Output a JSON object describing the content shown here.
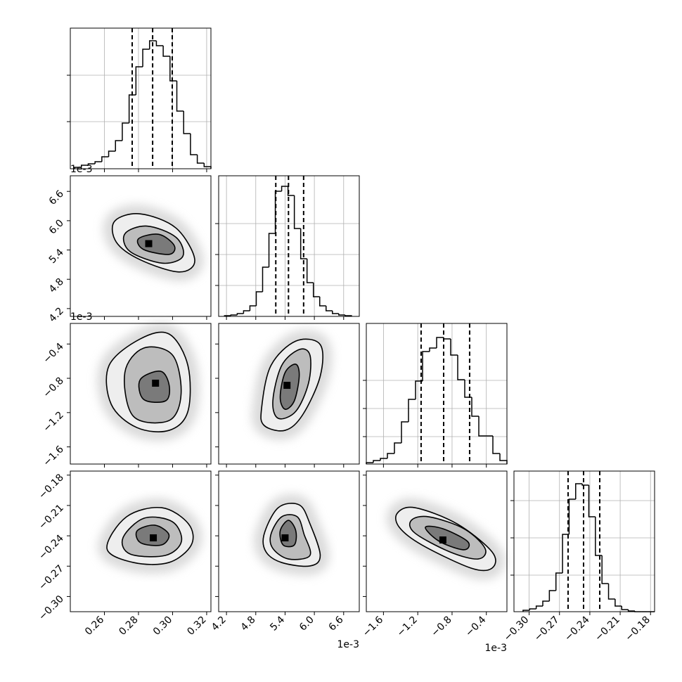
{
  "chart_data": {
    "type": "corner",
    "grid": true,
    "variables": [
      {
        "lim": [
          0.24,
          0.3225
        ],
        "ticks": [
          0.26,
          0.28,
          {
            "value": 0.3,
            "label": "0.30"
          },
          0.32
        ],
        "bins": [
          0.2425,
          0.2465,
          0.2505,
          0.2545,
          0.2585,
          0.2625,
          0.2665,
          0.2705,
          0.2745,
          0.2785,
          0.2825,
          0.2865,
          0.2905,
          0.2945,
          0.2985,
          0.3025,
          0.3065,
          0.3105,
          0.3145,
          0.3185,
          0.3225
        ],
        "counts": [
          2,
          5,
          7,
          10,
          17,
          25,
          40,
          65,
          105,
          145,
          170,
          182,
          175,
          160,
          125,
          82,
          50,
          20,
          8,
          3
        ],
        "hist_ylim": [
          0,
          200
        ],
        "hist_yticks": [
          67,
          133
        ],
        "quantiles": [
          0.2763,
          0.2883,
          0.2998
        ]
      },
      {
        "lim": [
          4.04,
          6.92
        ],
        "offset": "1e-3",
        "ticks": [
          4.2,
          4.8,
          5.4,
          {
            "value": 6,
            "label": "6.0"
          },
          6.6
        ],
        "bins": [
          4.16,
          4.29,
          4.42,
          4.55,
          4.68,
          4.81,
          4.94,
          5.07,
          5.2,
          5.33,
          5.46,
          5.59,
          5.72,
          5.85,
          5.98,
          6.11,
          6.24,
          6.37,
          6.5,
          6.63,
          6.76
        ],
        "counts": [
          1,
          2,
          4,
          8,
          15,
          35,
          70,
          118,
          178,
          185,
          172,
          125,
          82,
          48,
          28,
          15,
          8,
          4,
          2,
          1
        ],
        "hist_ylim": [
          0,
          200
        ],
        "hist_yticks": [
          44,
          88,
          132
        ],
        "quantiles": [
          5.21,
          5.47,
          5.78
        ]
      },
      {
        "lim": [
          -1.8,
          -0.16
        ],
        "offset": "1e-3",
        "ticks": [
          {
            "value": -1.6,
            "label": "−1.6"
          },
          {
            "value": -1.2,
            "label": "−1.2"
          },
          {
            "value": -0.8,
            "label": "−0.8"
          },
          {
            "value": -0.4,
            "label": "−0.4"
          }
        ],
        "bins": [
          -1.8,
          -1.718,
          -1.636,
          -1.554,
          -1.472,
          -1.39,
          -1.308,
          -1.226,
          -1.144,
          -1.062,
          -0.98,
          -0.898,
          -0.816,
          -0.734,
          -0.652,
          -0.57,
          -0.488,
          -0.406,
          -0.324,
          -0.242,
          -0.16
        ],
        "counts": [
          2,
          5,
          8,
          15,
          30,
          60,
          92,
          118,
          160,
          165,
          180,
          178,
          155,
          120,
          95,
          68,
          40,
          40,
          15,
          5
        ],
        "hist_ylim": [
          0,
          200
        ],
        "hist_yticks": [
          39,
          79,
          119
        ],
        "quantiles": [
          -1.161,
          -0.898,
          -0.595
        ]
      },
      {
        "lim": [
          -0.315,
          -0.176
        ],
        "ticks": [
          {
            "value": -0.3,
            "label": "−0.30"
          },
          {
            "value": -0.27,
            "label": "−0.27"
          },
          {
            "value": -0.24,
            "label": "−0.24"
          },
          {
            "value": -0.21,
            "label": "−0.21"
          },
          {
            "value": -0.18,
            "label": "−0.18"
          }
        ],
        "bins": [
          -0.306,
          -0.2995,
          -0.293,
          -0.2865,
          -0.28,
          -0.2735,
          -0.267,
          -0.2605,
          -0.254,
          -0.2475,
          -0.241,
          -0.2345,
          -0.228,
          -0.2215,
          -0.215,
          -0.2085,
          -0.202,
          -0.1955,
          -0.189,
          -0.1825,
          -0.176
        ],
        "counts": [
          2,
          4,
          8,
          15,
          30,
          55,
          110,
          160,
          182,
          180,
          135,
          80,
          40,
          18,
          8,
          3,
          1,
          0,
          0,
          0
        ],
        "hist_ylim": [
          0,
          200
        ],
        "hist_yticks": [
          52,
          105,
          158
        ],
        "quantiles": [
          -0.2615,
          -0.2462,
          -0.2302
        ]
      }
    ],
    "pairs": [
      [
        {
          "contours": [
            [
              [
                0.266,
                5.99
              ],
              [
                0.281,
                6.14
              ],
              [
                0.302,
                5.85
              ],
              [
                0.313,
                5.2
              ],
              [
                0.304,
                4.95
              ],
              [
                0.281,
                5.2
              ],
              [
                0.267,
                5.56
              ]
            ],
            [
              [
                0.272,
                5.73
              ],
              [
                0.285,
                5.89
              ],
              [
                0.302,
                5.66
              ],
              [
                0.306,
                5.27
              ],
              [
                0.294,
                5.13
              ],
              [
                0.275,
                5.37
              ]
            ],
            [
              [
                0.28,
                5.63
              ],
              [
                0.292,
                5.72
              ],
              [
                0.301,
                5.49
              ],
              [
                0.298,
                5.31
              ],
              [
                0.283,
                5.41
              ]
            ]
          ],
          "peak": [
            0.286,
            5.53
          ]
        }
      ],
      [
        {
          "contours": [
            [
              [
                0.2627,
                -0.652
              ],
              [
                0.281,
                -0.341
              ],
              [
                0.298,
                -0.284
              ],
              [
                0.309,
                -0.652
              ],
              [
                0.309,
                -1.185
              ],
              [
                0.298,
                -1.407
              ],
              [
                0.279,
                -1.374
              ],
              [
                0.264,
                -1.103
              ]
            ],
            [
              [
                0.272,
                -0.734
              ],
              [
                0.283,
                -0.448
              ],
              [
                0.3,
                -0.53
              ],
              [
                0.305,
                -0.98
              ],
              [
                0.298,
                -1.292
              ],
              [
                0.277,
                -1.243
              ]
            ],
            [
              [
                0.281,
                -0.816
              ],
              [
                0.293,
                -0.718
              ],
              [
                0.298,
                -0.882
              ],
              [
                0.296,
                -1.062
              ],
              [
                0.283,
                -1.046
              ]
            ]
          ],
          "peak": [
            0.29,
            -0.857
          ]
        },
        {
          "contours": [
            [
              [
                4.92,
                -1.144
              ],
              [
                5.11,
                -0.652
              ],
              [
                5.62,
                -0.366
              ],
              [
                6.12,
                -0.407
              ],
              [
                6.12,
                -0.775
              ],
              [
                5.76,
                -1.226
              ],
              [
                5.4,
                -1.407
              ],
              [
                4.97,
                -1.349
              ]
            ],
            [
              [
                5.15,
                -1.062
              ],
              [
                5.33,
                -0.652
              ],
              [
                5.69,
                -0.464
              ],
              [
                5.91,
                -0.53
              ],
              [
                5.88,
                -0.857
              ],
              [
                5.62,
                -1.185
              ],
              [
                5.26,
                -1.267
              ]
            ],
            [
              [
                5.3,
                -1.021
              ],
              [
                5.4,
                -0.734
              ],
              [
                5.62,
                -0.636
              ],
              [
                5.69,
                -0.775
              ],
              [
                5.59,
                -1.062
              ],
              [
                5.4,
                -1.161
              ]
            ]
          ],
          "peak": [
            5.44,
            -0.882
          ]
        }
      ],
      [
        {
          "contours": [
            [
              [
                0.2615,
                -0.2525
              ],
              [
                0.273,
                -0.2212
              ],
              [
                0.2936,
                -0.2122
              ],
              [
                0.3093,
                -0.2281
              ],
              [
                0.311,
                -0.249
              ],
              [
                0.2978,
                -0.2664
              ],
              [
                0.2771,
                -0.2664
              ]
            ],
            [
              [
                0.2709,
                -0.242
              ],
              [
                0.2833,
                -0.2226
              ],
              [
                0.2999,
                -0.2261
              ],
              [
                0.3052,
                -0.2455
              ],
              [
                0.2957,
                -0.2594
              ],
              [
                0.2751,
                -0.258
              ]
            ],
            [
              [
                0.2792,
                -0.2351
              ],
              [
                0.2895,
                -0.2295
              ],
              [
                0.2978,
                -0.2386
              ],
              [
                0.2936,
                -0.249
              ],
              [
                0.2813,
                -0.2469
              ]
            ]
          ],
          "peak": [
            0.2887,
            -0.242
          ]
        },
        {
          "contours": [
            [
              [
                4.97,
                -0.2386
              ],
              [
                5.26,
                -0.2122
              ],
              [
                5.69,
                -0.2094
              ],
              [
                5.91,
                -0.2281
              ],
              [
                6.12,
                -0.2594
              ],
              [
                5.91,
                -0.2698
              ],
              [
                5.33,
                -0.2664
              ],
              [
                5.01,
                -0.2559
              ]
            ],
            [
              [
                5.11,
                -0.2386
              ],
              [
                5.33,
                -0.2212
              ],
              [
                5.65,
                -0.2212
              ],
              [
                5.79,
                -0.2386
              ],
              [
                5.91,
                -0.2594
              ],
              [
                5.47,
                -0.2629
              ],
              [
                5.15,
                -0.2525
              ]
            ],
            [
              [
                5.3,
                -0.2351
              ],
              [
                5.47,
                -0.2247
              ],
              [
                5.62,
                -0.2351
              ],
              [
                5.59,
                -0.249
              ],
              [
                5.36,
                -0.249
              ]
            ]
          ],
          "peak": [
            5.4,
            -0.242
          ]
        },
        {
          "contours": [
            [
              [
                -1.439,
                -0.2177
              ],
              [
                -1.234,
                -0.2122
              ],
              [
                -0.743,
                -0.2281
              ],
              [
                -0.333,
                -0.2559
              ],
              [
                -0.333,
                -0.2719
              ],
              [
                -0.579,
                -0.2719
              ],
              [
                -1.152,
                -0.249
              ],
              [
                -1.415,
                -0.2316
              ]
            ],
            [
              [
                -1.275,
                -0.2247
              ],
              [
                -1.07,
                -0.2212
              ],
              [
                -0.661,
                -0.233
              ],
              [
                -0.415,
                -0.2525
              ],
              [
                -0.497,
                -0.2629
              ],
              [
                -0.825,
                -0.2559
              ],
              [
                -1.234,
                -0.2372
              ]
            ],
            [
              [
                -1.111,
                -0.2316
              ],
              [
                -0.907,
                -0.233
              ],
              [
                -0.62,
                -0.2455
              ],
              [
                -0.661,
                -0.2538
              ],
              [
                -0.948,
                -0.2455
              ]
            ]
          ],
          "peak": [
            -0.907,
            -0.2441
          ]
        }
      ]
    ]
  }
}
